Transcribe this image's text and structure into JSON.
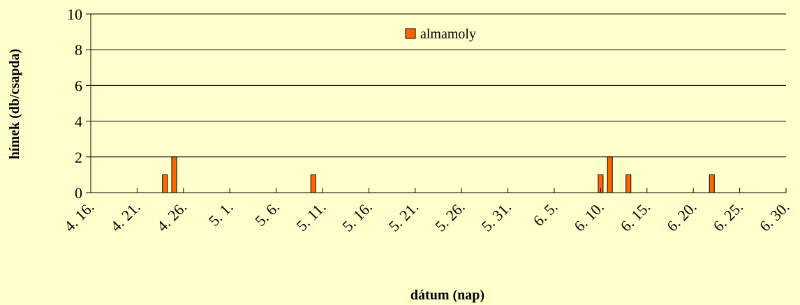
{
  "chart_data": {
    "type": "bar",
    "title": "",
    "xlabel": "dátum (nap)",
    "ylabel": "hímek (db/csapda)",
    "ylim": [
      0,
      10
    ],
    "yticks": [
      0,
      2,
      4,
      6,
      8,
      10
    ],
    "grid": true,
    "legend": "top-center",
    "x_tick_labels": [
      "4. 16.",
      "4. 21.",
      "4. 26.",
      "5. 1.",
      "5. 6.",
      "5. 11.",
      "5. 16.",
      "5. 21.",
      "5. 26.",
      "5. 31.",
      "6. 5.",
      "6. 10.",
      "6. 15.",
      "6. 20.",
      "6. 25.",
      "6. 30."
    ],
    "series": [
      {
        "name": "almamoly",
        "color": "#ff6600",
        "points": [
          {
            "x": "4. 24.",
            "y": 1
          },
          {
            "x": "4. 25.",
            "y": 2
          },
          {
            "x": "5. 10.",
            "y": 1
          },
          {
            "x": "6. 10.",
            "y": 1
          },
          {
            "x": "6. 11.",
            "y": 2
          },
          {
            "x": "6. 13.",
            "y": 1
          },
          {
            "x": "6. 22.",
            "y": 1
          }
        ]
      }
    ]
  }
}
